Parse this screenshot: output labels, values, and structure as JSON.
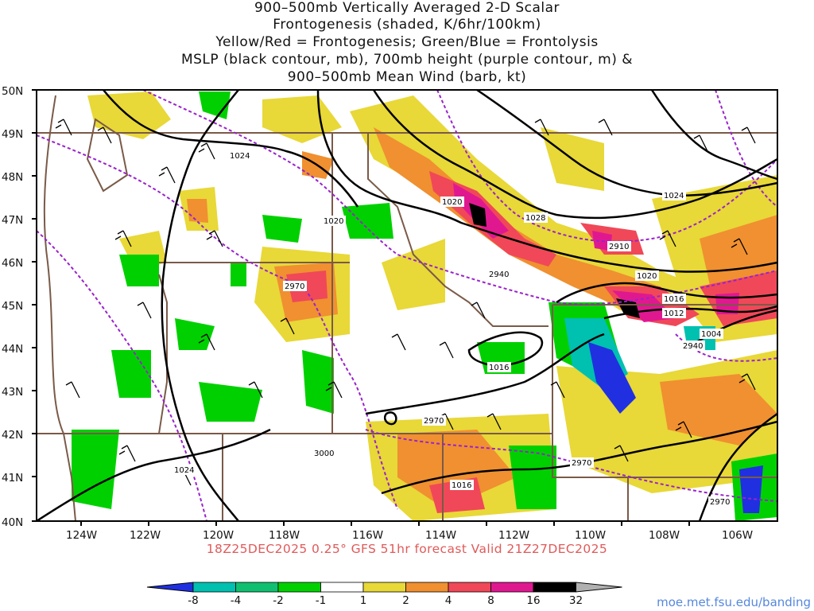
{
  "title_lines": [
    "900–500mb Vertically Averaged 2-D Scalar",
    "Frontogenesis (shaded, K/6hr/100km)",
    "Yellow/Red = Frontogenesis;  Green/Blue = Frontolysis",
    "MSLP (black contour, mb), 700mb height (purple contour, m) &",
    "900–500mb Mean Wind (barb, kt)"
  ],
  "lat_labels": [
    "50N",
    "49N",
    "48N",
    "47N",
    "46N",
    "45N",
    "44N",
    "43N",
    "42N",
    "41N",
    "40N"
  ],
  "lon_labels": [
    "124W",
    "122W",
    "120W",
    "118W",
    "116W",
    "114W",
    "112W",
    "110W",
    "108W",
    "106W"
  ],
  "subtitle": "18Z25DEC2025 0.25° GFS 51hr forecast Valid 21Z27DEC2025",
  "credit": "moe.met.fsu.edu/banding",
  "colorbar": {
    "ticks": [
      "-8",
      "-4",
      "-2",
      "-1",
      "1",
      "2",
      "4",
      "8",
      "16",
      "32"
    ],
    "colors": [
      "#2030e0",
      "#00c0b0",
      "#10c070",
      "#00d000",
      "#ffffff",
      "#e8d838",
      "#f09030",
      "#f04858",
      "#e01890",
      "#000000",
      "#b0b0b0"
    ]
  },
  "mslp_labels": [
    "1024",
    "1020",
    "1020",
    "1028",
    "1024",
    "1020",
    "1016",
    "1012",
    "1004",
    "1016",
    "1024",
    "1016"
  ],
  "height_labels": [
    "2970",
    "2940",
    "2910",
    "2940",
    "2970",
    "3000",
    "2970",
    "2970"
  ],
  "colors": {
    "mslp": "#000000",
    "height": "#9a22cc",
    "border": "#7a5a48"
  }
}
